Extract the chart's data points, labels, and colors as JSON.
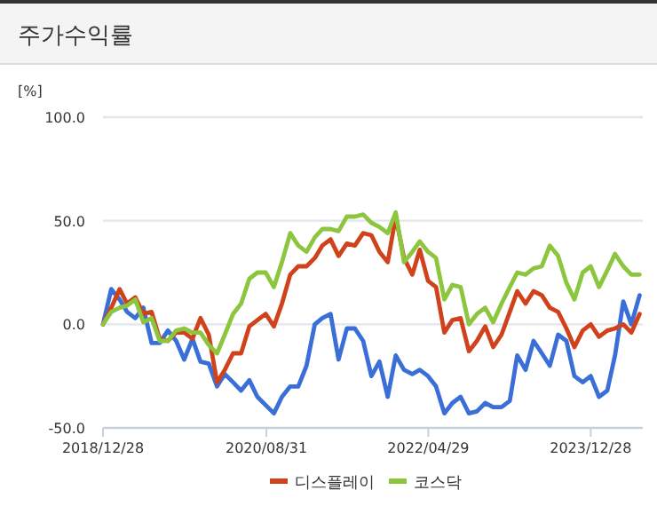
{
  "chart_data": {
    "type": "line",
    "title": "주가수익률",
    "ylabel": "[%]",
    "x": [
      "2018-12-28",
      "2019-01-28",
      "2019-02-28",
      "2019-03-28",
      "2019-04-28",
      "2019-05-28",
      "2019-06-28",
      "2019-07-28",
      "2019-08-28",
      "2019-09-28",
      "2019-10-28",
      "2019-11-28",
      "2019-12-28",
      "2020-01-28",
      "2020-02-28",
      "2020-03-28",
      "2020-04-28",
      "2020-05-28",
      "2020-06-28",
      "2020-07-28",
      "2020-08-28",
      "2020-09-28",
      "2020-10-28",
      "2020-11-28",
      "2020-12-28",
      "2021-01-28",
      "2021-02-28",
      "2021-03-28",
      "2021-04-28",
      "2021-05-28",
      "2021-06-28",
      "2021-07-28",
      "2021-08-28",
      "2021-09-28",
      "2021-10-28",
      "2021-11-28",
      "2021-12-28",
      "2022-01-28",
      "2022-02-28",
      "2022-03-28",
      "2022-04-28",
      "2022-05-28",
      "2022-06-28",
      "2022-07-28",
      "2022-08-28",
      "2022-09-28",
      "2022-10-28",
      "2022-11-28",
      "2022-12-28",
      "2023-01-28",
      "2023-02-28",
      "2023-03-28",
      "2023-04-28",
      "2023-05-28",
      "2023-06-28",
      "2023-07-28",
      "2023-08-28",
      "2023-09-28",
      "2023-10-28",
      "2023-11-28",
      "2023-12-28",
      "2024-01-28",
      "2024-02-28",
      "2024-03-28",
      "2024-04-28",
      "2024-05-28",
      "2024-06-28"
    ],
    "series": [
      {
        "color": "#3a6fd8",
        "values": [
          0,
          17,
          12,
          6,
          3,
          8,
          -9,
          -9,
          -3,
          -8,
          -17,
          -7,
          -18,
          -19,
          -30,
          -24,
          -28,
          -32,
          -27,
          -35,
          -39,
          -43,
          -35,
          -30,
          -30,
          -20,
          0,
          3,
          5,
          -17,
          -2,
          -2,
          -8,
          -25,
          -18,
          -35,
          -15,
          -22,
          -24,
          -22,
          -25,
          -30,
          -43,
          -38,
          -35,
          -43,
          -42,
          -38,
          -40,
          -40,
          -37,
          -15,
          -22,
          -8,
          -14,
          -20,
          -5,
          -8,
          -25,
          -28,
          -25,
          -35,
          -32,
          -15,
          11,
          0,
          14
        ]
      },
      {
        "name": "디스플레이",
        "color": "#d0421b",
        "values": [
          0,
          8,
          17,
          10,
          13,
          5,
          6,
          -7,
          -8,
          -4,
          -4,
          -7,
          3,
          -5,
          -28,
          -22,
          -14,
          -14,
          -1,
          2,
          5,
          -1,
          10,
          24,
          28,
          28,
          32,
          38,
          41,
          33,
          39,
          38,
          44,
          43,
          35,
          30,
          52,
          32,
          24,
          36,
          21,
          18,
          -4,
          2,
          3,
          -13,
          -8,
          -1,
          -11,
          -5,
          6,
          16,
          10,
          16,
          14,
          8,
          6,
          -2,
          -11,
          -3,
          0,
          -6,
          -3,
          -2,
          0,
          -4,
          5
        ]
      },
      {
        "name": "코스닥",
        "color": "#8cc63f",
        "values": [
          0,
          6,
          8,
          9,
          12,
          1,
          3,
          -8,
          -8,
          -3,
          -2,
          -4,
          -4,
          -10,
          -14,
          -5,
          5,
          10,
          22,
          25,
          25,
          18,
          30,
          44,
          38,
          35,
          42,
          46,
          46,
          45,
          52,
          52,
          53,
          49,
          47,
          44,
          54,
          30,
          35,
          40,
          35,
          32,
          12,
          19,
          18,
          0,
          5,
          8,
          1,
          10,
          18,
          25,
          24,
          27,
          28,
          38,
          33,
          20,
          12,
          25,
          28,
          18,
          26,
          34,
          28,
          24,
          24
        ]
      }
    ],
    "xlim": [
      "2018-12-28",
      "2024-07-10"
    ],
    "xticks": [
      {
        "value": "2018-12-28",
        "label": "2018/12/28"
      },
      {
        "value": "2020-08-31",
        "label": "2020/08/31"
      },
      {
        "value": "2022-04-29",
        "label": "2022/04/29"
      },
      {
        "value": "2023-12-28",
        "label": "2023/12/28"
      }
    ],
    "ylim": [
      -50,
      100
    ],
    "yticks": [
      {
        "value": -50,
        "label": "-50.0"
      },
      {
        "value": 0,
        "label": "0.0"
      },
      {
        "value": 50,
        "label": "50.0"
      },
      {
        "value": 100,
        "label": "100.0"
      }
    ],
    "grid": "y",
    "legend": "bottom",
    "marker": "none",
    "line_style": "solid"
  }
}
